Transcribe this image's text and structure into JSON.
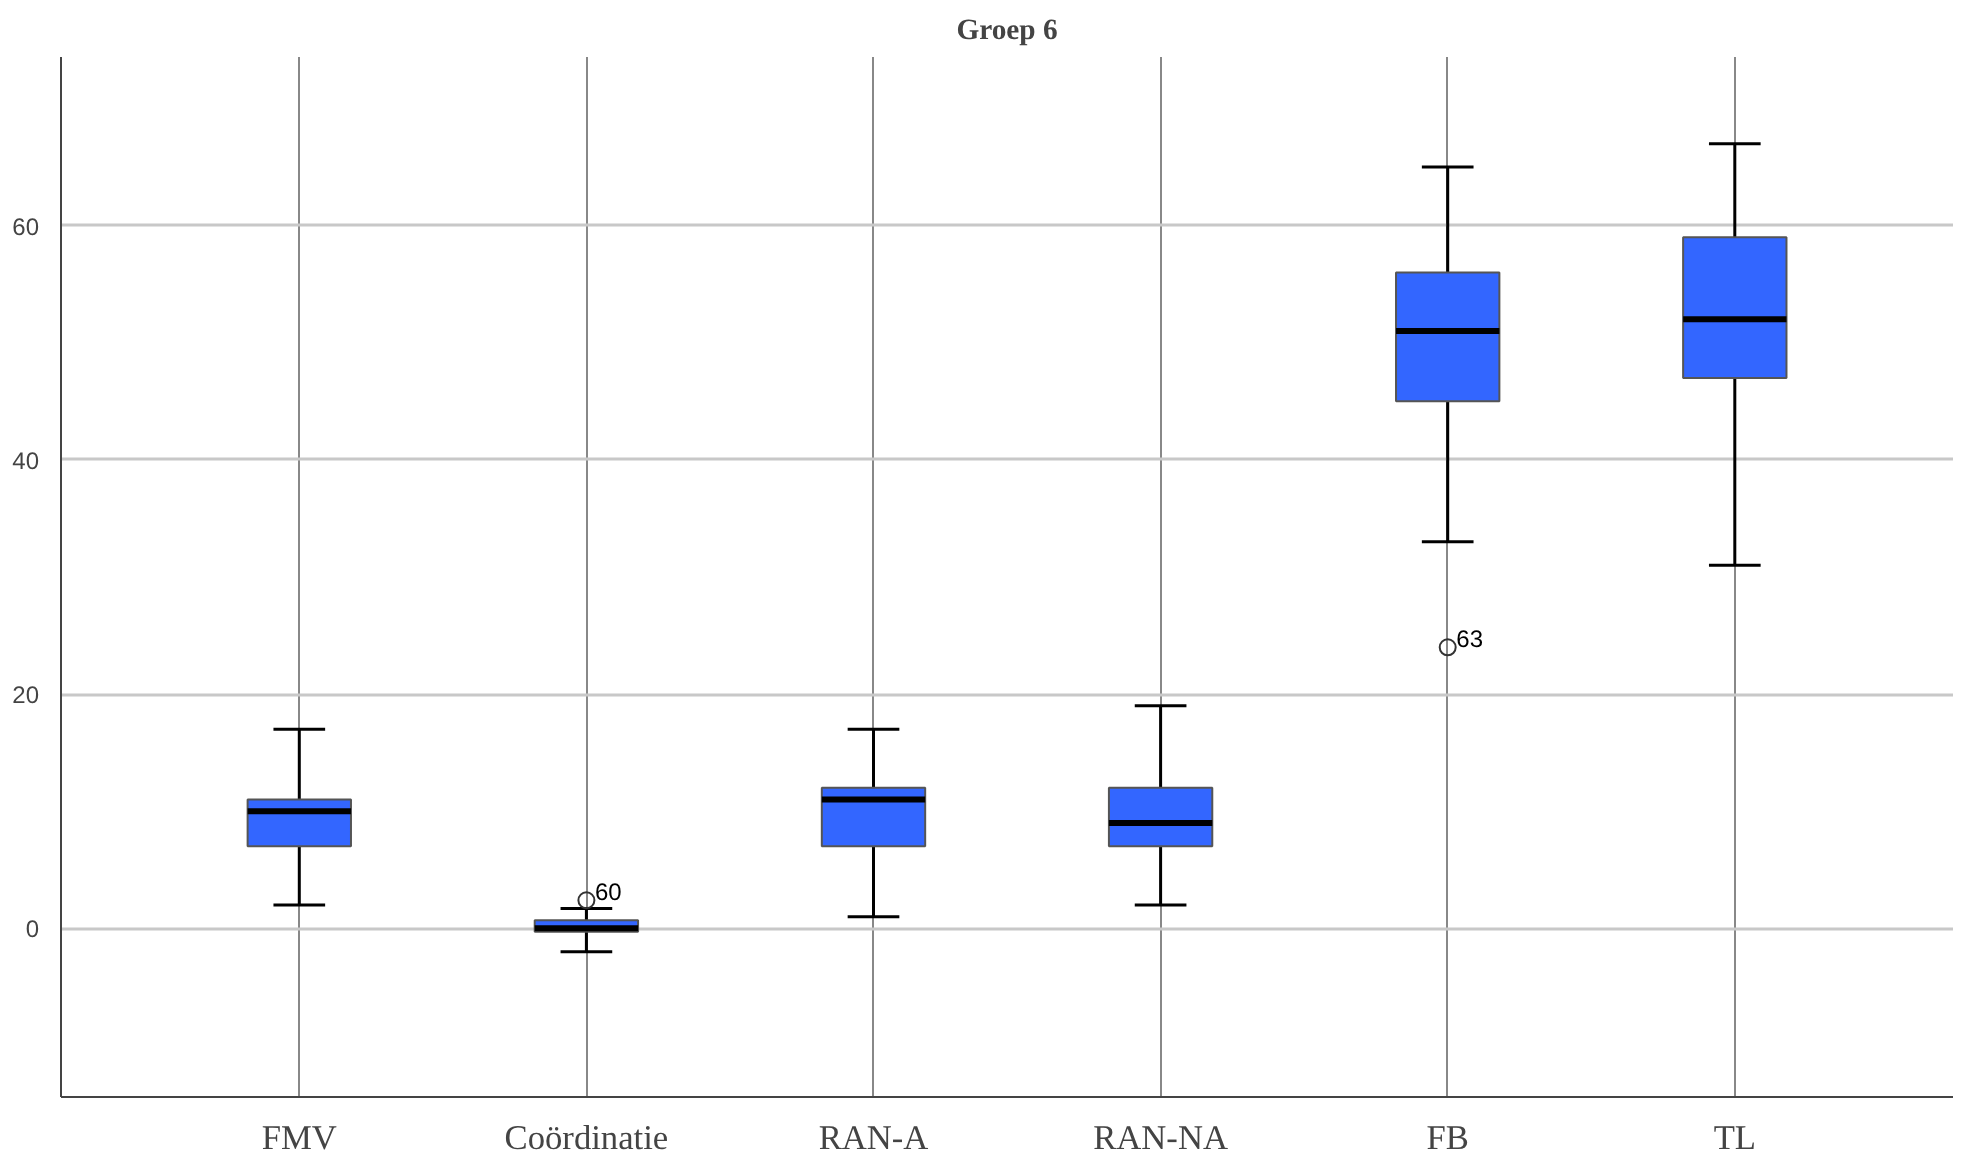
{
  "chart_data": {
    "type": "box",
    "title": "Groep 6",
    "categories": [
      "FMV",
      "Coördinatie",
      "RAN-A",
      "RAN-NA",
      "FB",
      "TL"
    ],
    "series": [
      {
        "color": "#3366ff",
        "boxes": [
          {
            "low": 2,
            "q1": 7,
            "median": 10,
            "q3": 11,
            "high": 17
          },
          {
            "low": -2,
            "q1": -0.3,
            "median": 0,
            "q3": 0.7,
            "high": 1.7,
            "outliers": [
              2.4
            ]
          },
          {
            "low": 1,
            "q1": 7,
            "median": 11,
            "q3": 12,
            "high": 17
          },
          {
            "low": 2,
            "q1": 7,
            "median": 9,
            "q3": 12,
            "high": 19
          },
          {
            "low": 33,
            "q1": 45,
            "median": 51,
            "q3": 56,
            "high": 65,
            "outliers": [
              24
            ]
          },
          {
            "low": 31,
            "q1": 47,
            "median": 52,
            "q3": 59,
            "high": 67
          }
        ]
      }
    ],
    "annotations": [
      "60",
      "63"
    ],
    "ylim": [
      -14.4,
      74.4
    ],
    "yticks": [
      0,
      20,
      40,
      60
    ],
    "grid": true
  }
}
